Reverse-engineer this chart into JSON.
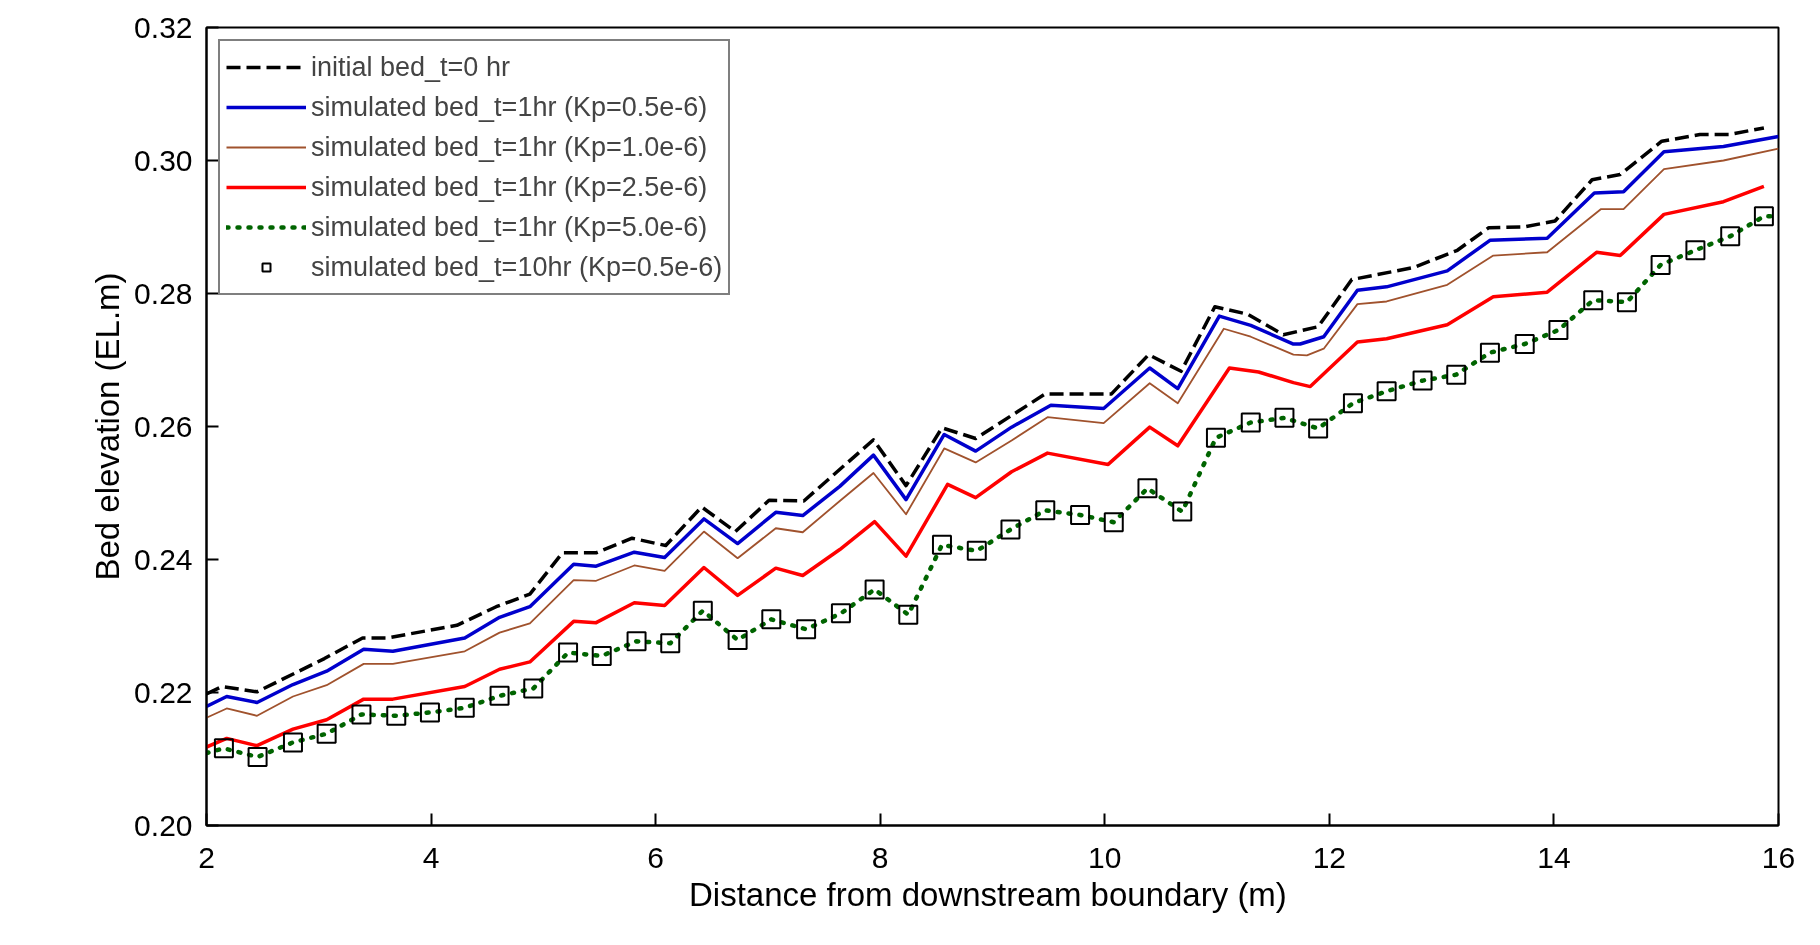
{
  "chart_data": {
    "type": "line",
    "xlabel": "Distance from  downstream boundary (m)",
    "ylabel": "Bed elevation (EL.m)",
    "xlim": [
      2,
      16
    ],
    "xticks": [
      2,
      4,
      6,
      8,
      10,
      12,
      14,
      16
    ],
    "ylim": [
      0.2,
      0.32
    ],
    "yticks": [
      {
        "value": 0.2,
        "label": "0.20"
      },
      {
        "value": 0.22,
        "label": "0.22"
      },
      {
        "value": 0.24,
        "label": "0.24"
      },
      {
        "value": 0.26,
        "label": "0.26"
      },
      {
        "value": 0.28,
        "label": "0.28"
      },
      {
        "value": 0.3,
        "label": "0.30"
      },
      {
        "value": 0.32,
        "label": "0.32"
      }
    ],
    "grid": false,
    "legend": "top left",
    "series": [
      {
        "name": "initial bed_t=0 hr",
        "color": "#000000",
        "line_style": "dashed",
        "x": [
          2.0,
          2.14,
          2.45,
          3.05,
          3.39,
          3.61,
          4.23,
          4.58,
          4.88,
          5.17,
          5.47,
          5.79,
          6.09,
          6.41,
          6.71,
          7.01,
          7.32,
          7.94,
          8.23,
          8.55,
          8.85,
          9.47,
          10.06,
          10.39,
          10.68,
          10.98,
          11.27,
          11.59,
          11.9,
          12.2,
          12.75,
          13.14,
          13.42,
          13.73,
          14.01,
          14.34,
          14.59,
          14.96,
          15.3,
          15.56,
          15.87
        ],
        "values": [
          0.2198,
          0.2209,
          0.2201,
          0.2251,
          0.2282,
          0.2282,
          0.2301,
          0.2329,
          0.2348,
          0.241,
          0.241,
          0.2432,
          0.2421,
          0.2479,
          0.2442,
          0.2489,
          0.2488,
          0.258,
          0.2511,
          0.2598,
          0.2582,
          0.2649,
          0.2649,
          0.2708,
          0.2683,
          0.278,
          0.2769,
          0.2738,
          0.275,
          0.2821,
          0.2839,
          0.2865,
          0.2899,
          0.29,
          0.2909,
          0.2971,
          0.2979,
          0.3029,
          0.3039,
          0.3039,
          0.3049
        ]
      },
      {
        "name": "simulated bed_t=1hr (Kp=0.5e-6)",
        "color": "#0000cc",
        "line_style": "solid",
        "x": [
          2.0,
          2.18,
          2.45,
          2.77,
          3.07,
          3.4,
          3.66,
          4.3,
          4.61,
          4.88,
          5.27,
          5.47,
          5.81,
          6.08,
          6.43,
          6.73,
          7.07,
          7.31,
          7.64,
          7.94,
          8.23,
          8.57,
          8.85,
          9.17,
          9.52,
          9.99,
          10.4,
          10.65,
          11.02,
          11.3,
          11.68,
          11.74,
          11.95,
          12.25,
          12.51,
          13.05,
          13.43,
          13.94,
          14.36,
          14.62,
          14.98,
          15.51,
          16.0
        ],
        "values": [
          0.2179,
          0.2194,
          0.2185,
          0.2212,
          0.2232,
          0.2265,
          0.2262,
          0.2282,
          0.2313,
          0.2329,
          0.2393,
          0.239,
          0.2411,
          0.2403,
          0.2461,
          0.2424,
          0.2471,
          0.2466,
          0.251,
          0.2557,
          0.249,
          0.2588,
          0.2563,
          0.2599,
          0.2632,
          0.2627,
          0.2688,
          0.2657,
          0.2766,
          0.2752,
          0.2724,
          0.2724,
          0.2735,
          0.2805,
          0.281,
          0.2834,
          0.288,
          0.2883,
          0.2951,
          0.2953,
          0.3013,
          0.3021,
          0.3036
        ]
      },
      {
        "name": "simulated bed_t=1hr (Kp=1.0e-6)",
        "color": "#a0522d",
        "line_style": "solid",
        "x": [
          2.0,
          2.18,
          2.45,
          2.77,
          3.07,
          3.4,
          3.66,
          4.3,
          4.61,
          4.88,
          5.27,
          5.47,
          5.81,
          6.08,
          6.43,
          6.73,
          7.07,
          7.31,
          7.64,
          7.94,
          8.23,
          8.57,
          8.85,
          9.17,
          9.49,
          9.99,
          10.4,
          10.65,
          11.06,
          11.3,
          11.68,
          11.8,
          11.95,
          12.25,
          12.51,
          13.05,
          13.46,
          13.94,
          14.42,
          14.62,
          14.98,
          15.51,
          16.0
        ],
        "values": [
          0.2162,
          0.2176,
          0.2165,
          0.2194,
          0.2211,
          0.2243,
          0.2243,
          0.2262,
          0.229,
          0.2304,
          0.2369,
          0.2368,
          0.2391,
          0.2383,
          0.2442,
          0.2402,
          0.2447,
          0.2441,
          0.2488,
          0.253,
          0.2468,
          0.2567,
          0.2546,
          0.2579,
          0.2614,
          0.2605,
          0.2665,
          0.2635,
          0.2747,
          0.2735,
          0.2708,
          0.2707,
          0.2717,
          0.2784,
          0.2788,
          0.2813,
          0.2857,
          0.2862,
          0.2927,
          0.2927,
          0.2987,
          0.3,
          0.3018
        ]
      },
      {
        "name": "simulated bed_t=1hr (Kp=2.5e-6)",
        "color": "#ff0000",
        "line_style": "solid",
        "x": [
          2.0,
          2.18,
          2.45,
          2.77,
          3.07,
          3.4,
          3.66,
          4.3,
          4.61,
          4.88,
          5.27,
          5.47,
          5.81,
          6.08,
          6.43,
          6.73,
          7.07,
          7.31,
          7.64,
          7.95,
          8.23,
          8.6,
          8.85,
          9.17,
          9.49,
          10.03,
          10.4,
          10.65,
          11.11,
          11.37,
          11.68,
          11.83,
          12.25,
          12.51,
          13.05,
          13.46,
          13.94,
          14.38,
          14.59,
          14.98,
          15.51,
          15.87
        ],
        "values": [
          0.2118,
          0.2131,
          0.212,
          0.2145,
          0.2159,
          0.219,
          0.219,
          0.2209,
          0.2235,
          0.2246,
          0.2307,
          0.2305,
          0.2335,
          0.2331,
          0.2388,
          0.2346,
          0.2387,
          0.2376,
          0.2415,
          0.2457,
          0.2405,
          0.2513,
          0.2493,
          0.2532,
          0.256,
          0.2543,
          0.2599,
          0.2571,
          0.2688,
          0.2682,
          0.2666,
          0.266,
          0.2727,
          0.2732,
          0.2753,
          0.2795,
          0.2802,
          0.2862,
          0.2857,
          0.2919,
          0.2938,
          0.2961
        ]
      },
      {
        "name": "simulated bed_t=1hr (Kp=5.0e-6)",
        "color": "#006400",
        "line_style": "dotted",
        "x": [
          2.0,
          2.155,
          2.455,
          2.77,
          3.07,
          3.38,
          3.69,
          3.99,
          4.3,
          4.61,
          4.91,
          5.22,
          5.52,
          5.83,
          6.13,
          6.42,
          6.73,
          7.03,
          7.34,
          7.65,
          7.95,
          8.25,
          8.55,
          8.86,
          9.16,
          9.47,
          9.78,
          10.08,
          10.38,
          10.69,
          10.99,
          11.3,
          11.6,
          11.9,
          12.21,
          12.51,
          12.83,
          13.13,
          13.43,
          13.74,
          14.04,
          14.35,
          14.65,
          14.95,
          15.26,
          15.57,
          15.87,
          16.0
        ],
        "values": [
          0.2109,
          0.2116,
          0.2103,
          0.2125,
          0.2138,
          0.2167,
          0.2165,
          0.217,
          0.2177,
          0.2195,
          0.2206,
          0.226,
          0.2255,
          0.2277,
          0.2274,
          0.2323,
          0.2279,
          0.231,
          0.2295,
          0.2319,
          0.2355,
          0.2317,
          0.2422,
          0.2413,
          0.2445,
          0.2474,
          0.2467,
          0.2456,
          0.2507,
          0.2472,
          0.2583,
          0.2606,
          0.2613,
          0.2597,
          0.2635,
          0.2653,
          0.2669,
          0.2678,
          0.2711,
          0.2724,
          0.2745,
          0.279,
          0.2787,
          0.2843,
          0.2865,
          0.2886,
          0.2916,
          0.2916
        ]
      },
      {
        "name": "simulated bed_t=10hr (Kp=0.5e-6)",
        "type": "scatter",
        "marker": "square",
        "color": "#000000",
        "x": [
          2.155,
          2.455,
          2.77,
          3.07,
          3.38,
          3.69,
          3.99,
          4.3,
          4.61,
          4.91,
          5.22,
          5.52,
          5.83,
          6.13,
          6.42,
          6.73,
          7.03,
          7.34,
          7.65,
          7.95,
          8.25,
          8.55,
          8.86,
          9.16,
          9.47,
          9.78,
          10.08,
          10.38,
          10.69,
          10.99,
          11.3,
          11.6,
          11.9,
          12.21,
          12.51,
          12.83,
          13.13,
          13.43,
          13.74,
          14.04,
          14.35,
          14.65,
          14.95,
          15.26,
          15.57,
          15.87
        ],
        "values": [
          0.2116,
          0.2103,
          0.2125,
          0.2138,
          0.2167,
          0.2165,
          0.217,
          0.2177,
          0.2195,
          0.2206,
          0.226,
          0.2255,
          0.2277,
          0.2274,
          0.2323,
          0.2279,
          0.231,
          0.2295,
          0.2319,
          0.2355,
          0.2317,
          0.2422,
          0.2413,
          0.2445,
          0.2474,
          0.2467,
          0.2456,
          0.2507,
          0.2472,
          0.2583,
          0.2606,
          0.2613,
          0.2597,
          0.2635,
          0.2653,
          0.2669,
          0.2678,
          0.2711,
          0.2724,
          0.2745,
          0.279,
          0.2787,
          0.2843,
          0.2865,
          0.2886,
          0.2916
        ]
      }
    ]
  }
}
